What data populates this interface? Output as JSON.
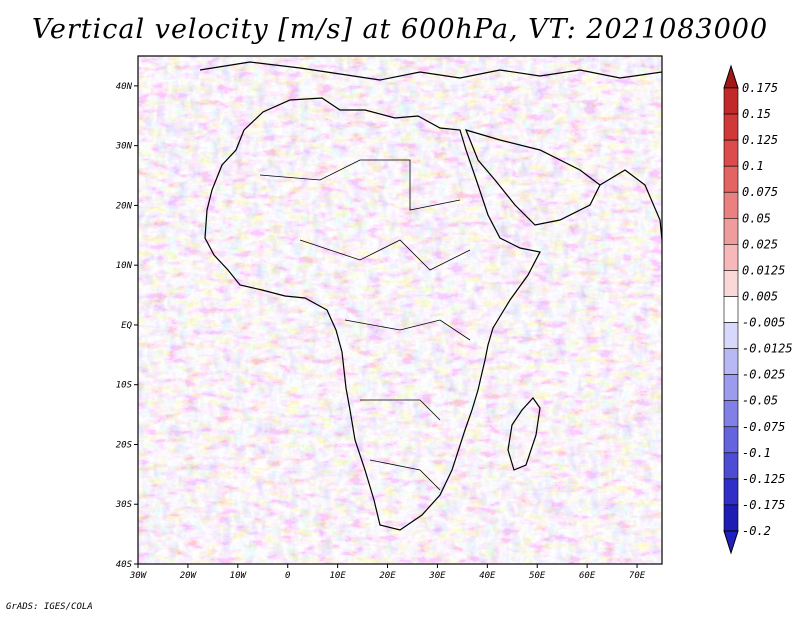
{
  "title": "Vertical velocity [m/s] at 600hPa, VT: 2021083000",
  "credit": "GrADS: IGES/COLA",
  "colors": {
    "background": "#ffffff",
    "frame": "#000000",
    "coast": "#000000",
    "positive": "#d23c3c",
    "negative": "#3c3cd2"
  },
  "map": {
    "projection": "latlon",
    "lon_range": [
      -30,
      75
    ],
    "lat_range": [
      -40,
      45
    ],
    "lon_ticks": [
      {
        "value": -30,
        "label": "30W"
      },
      {
        "value": -20,
        "label": "20W"
      },
      {
        "value": -10,
        "label": "10W"
      },
      {
        "value": 0,
        "label": "0"
      },
      {
        "value": 10,
        "label": "10E"
      },
      {
        "value": 20,
        "label": "20E"
      },
      {
        "value": 30,
        "label": "30E"
      },
      {
        "value": 40,
        "label": "40E"
      },
      {
        "value": 50,
        "label": "50E"
      },
      {
        "value": 60,
        "label": "60E"
      },
      {
        "value": 70,
        "label": "70E"
      }
    ],
    "lat_ticks": [
      {
        "value": 40,
        "label": "40N"
      },
      {
        "value": 30,
        "label": "30N"
      },
      {
        "value": 20,
        "label": "20N"
      },
      {
        "value": 10,
        "label": "10N"
      },
      {
        "value": 0,
        "label": "EQ"
      },
      {
        "value": -10,
        "label": "10S"
      },
      {
        "value": -20,
        "label": "20S"
      },
      {
        "value": -30,
        "label": "30S"
      },
      {
        "value": -40,
        "label": "40S"
      }
    ]
  },
  "colorbar": {
    "levels": [
      {
        "label": "0.175",
        "color": "#b01e1e"
      },
      {
        "label": "0.15",
        "color": "#c22a2a"
      },
      {
        "label": "0.125",
        "color": "#d13838"
      },
      {
        "label": "0.1",
        "color": "#dc4c4c"
      },
      {
        "label": "0.075",
        "color": "#e46464"
      },
      {
        "label": "0.05",
        "color": "#eb8080"
      },
      {
        "label": "0.025",
        "color": "#f19c9c"
      },
      {
        "label": "0.0125",
        "color": "#f6b8b8"
      },
      {
        "label": "0.005",
        "color": "#fad8d8"
      },
      {
        "label": "-0.005",
        "color": "#ffffff"
      },
      {
        "label": "-0.0125",
        "color": "#d8d8fa"
      },
      {
        "label": "-0.025",
        "color": "#b8b8f4"
      },
      {
        "label": "-0.05",
        "color": "#9c9cee"
      },
      {
        "label": "-0.075",
        "color": "#8080e6"
      },
      {
        "label": "-0.1",
        "color": "#6464de"
      },
      {
        "label": "-0.125",
        "color": "#4c4cd4"
      },
      {
        "label": "-0.175",
        "color": "#3030c8"
      },
      {
        "label": "-0.2",
        "color": "#1e1eb4"
      }
    ],
    "extend_max_color": "#a01818",
    "extend_min_color": "#2020c0"
  }
}
